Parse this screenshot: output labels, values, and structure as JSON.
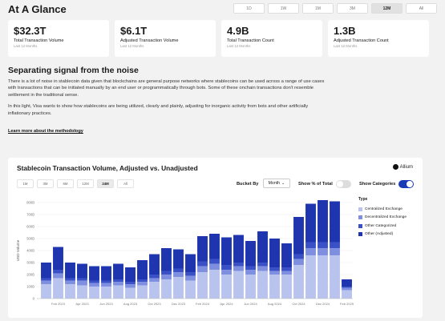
{
  "header": {
    "title": "At A Glance",
    "ranges": [
      "1D",
      "1W",
      "1M",
      "3M",
      "12M",
      "All"
    ],
    "active_range": "12M"
  },
  "cards": [
    {
      "value": "$32.3T",
      "label": "Total Transaction Volume",
      "sub": "Last 12 Months"
    },
    {
      "value": "$6.1T",
      "label": "Adjusted Transaction Volume",
      "sub": "Last 12 Months"
    },
    {
      "value": "4.9B",
      "label": "Total Transaction Count",
      "sub": "Last 12 Months"
    },
    {
      "value": "1.3B",
      "label": "Adjusted Transaction Count",
      "sub": "Last 12 Months"
    }
  ],
  "section": {
    "title": "Separating signal from the noise",
    "p1": "There is a lot of noise in stablecoin data given that blockchains are general purpose networks where stablecoins can be used across a range of use cases with transactions that can be initiated manually by an end user or programmatically through bots. Some of these onchain transactions don't resemble settlement in the traditional sense.",
    "p2": "In this light, Visa wants to show how stablecoins are being utilized, clearly and plainly, adjusting for inorganic activity from bots and other artificially inflationary practices.",
    "link": "Learn more about the methodology"
  },
  "chart_panel": {
    "title": "Stablecoin Transaction Volume, Adjusted vs. Unadjusted",
    "brand": "Allium",
    "tabs": [
      "1M",
      "3M",
      "6M",
      "12M",
      "24M",
      "All"
    ],
    "active_tab": "24M",
    "bucket_label": "Bucket By",
    "bucket_value": "Month",
    "pct_label": "Show % of Total",
    "pct_on": false,
    "categories_label": "Show Categories",
    "categories_on": true,
    "legend_title": "Type"
  },
  "colors": {
    "centralized": "#b9c4ee",
    "decentralized": "#7f8fe0",
    "other_categorized": "#3a50c6",
    "other_adjusted": "#1f35b0",
    "toggle_on": "#1a3bb8"
  },
  "chart_data": {
    "type": "bar",
    "stacked": true,
    "ylabel": "USD Volume",
    "y_ticks": [
      "0",
      "100B",
      "200B",
      "300B",
      "400B",
      "500B",
      "600B",
      "700B",
      "800B"
    ],
    "ylim": [
      0,
      800
    ],
    "x_tick_labels": [
      "Feb 2023",
      "Apr 2023",
      "Jun 2023",
      "Aug 2023",
      "Oct 2023",
      "Dec 2023",
      "Feb 2024",
      "Apr 2024",
      "Jun 2024",
      "Aug 2024",
      "Oct 2024",
      "Dec 2024",
      "Feb 2025"
    ],
    "categories": [
      "Jan 2023",
      "Feb 2023",
      "Mar 2023",
      "Apr 2023",
      "May 2023",
      "Jun 2023",
      "Jul 2023",
      "Aug 2023",
      "Sep 2023",
      "Oct 2023",
      "Nov 2023",
      "Dec 2023",
      "Jan 2024",
      "Feb 2024",
      "Mar 2024",
      "Apr 2024",
      "May 2024",
      "Jun 2024",
      "Jul 2024",
      "Aug 2024",
      "Sep 2024",
      "Oct 2024",
      "Nov 2024",
      "Dec 2024",
      "Jan 2025",
      "Feb 2025"
    ],
    "series": [
      {
        "name": "Centralized Exchange",
        "values": [
          120,
          170,
          120,
          110,
          100,
          100,
          110,
          90,
          110,
          140,
          160,
          180,
          150,
          220,
          240,
          200,
          230,
          200,
          230,
          200,
          200,
          280,
          360,
          360,
          360,
          70
        ]
      },
      {
        "name": "Decentralized Exchange",
        "values": [
          30,
          40,
          30,
          40,
          30,
          30,
          30,
          30,
          30,
          30,
          40,
          40,
          40,
          50,
          50,
          40,
          40,
          40,
          40,
          30,
          30,
          50,
          60,
          60,
          60,
          20
        ]
      },
      {
        "name": "Other Categorized",
        "values": [
          20,
          30,
          20,
          20,
          20,
          20,
          20,
          20,
          20,
          30,
          30,
          30,
          30,
          40,
          40,
          40,
          30,
          30,
          30,
          30,
          30,
          40,
          50,
          50,
          50,
          10
        ]
      },
      {
        "name": "Other (Adjusted)",
        "values": [
          130,
          190,
          130,
          120,
          120,
          120,
          130,
          120,
          160,
          170,
          190,
          160,
          150,
          210,
          210,
          230,
          230,
          210,
          260,
          240,
          200,
          310,
          320,
          350,
          340,
          60
        ]
      }
    ]
  }
}
